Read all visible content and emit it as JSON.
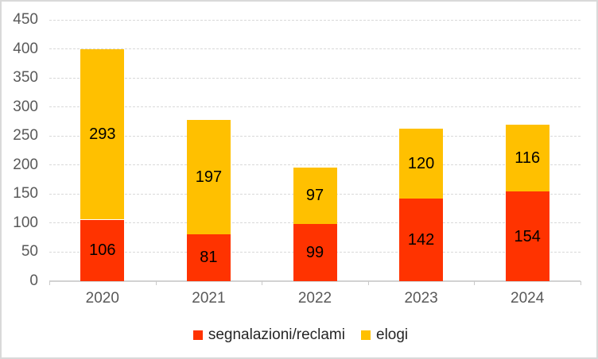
{
  "chart_data": {
    "type": "bar",
    "stacked": true,
    "title": "",
    "categories": [
      "2020",
      "2021",
      "2022",
      "2023",
      "2024"
    ],
    "series": [
      {
        "name": "segnalazioni/reclami",
        "color": "#FF3300",
        "values": [
          106,
          81,
          99,
          142,
          154
        ]
      },
      {
        "name": "elogi",
        "color": "#FFC000",
        "values": [
          293,
          197,
          97,
          120,
          116
        ]
      }
    ],
    "ylim": [
      0,
      450
    ],
    "ytick_step": 50,
    "ytick_labels": [
      "0",
      "50",
      "100",
      "150",
      "200",
      "250",
      "300",
      "350",
      "400",
      "450"
    ],
    "grid": true,
    "data_labels_shown": true,
    "legend_position": "bottom",
    "colors": {
      "gridline": "#D9D9D9",
      "axis_line": "#D2D2D2",
      "axis_label": "#595959",
      "data_label": "#000000",
      "legend_label": "#262626",
      "frame_border": "#D9D9D9",
      "background": "#FFFFFF"
    }
  }
}
